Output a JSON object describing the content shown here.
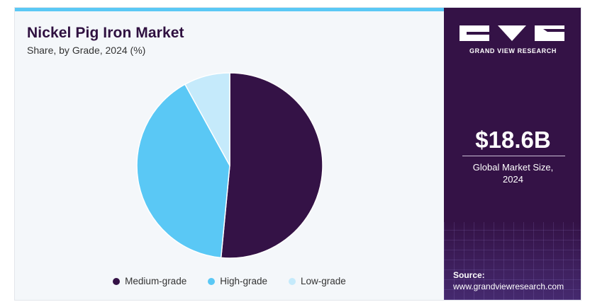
{
  "chart_data": {
    "type": "pie",
    "title": "Nickel Pig Iron Market",
    "subtitle": "Share, by Grade, 2024 (%)",
    "categories": [
      "Medium-grade",
      "High-grade",
      "Low-grade"
    ],
    "values": [
      51.5,
      40.5,
      8.0
    ],
    "colors": [
      "#341246",
      "#5ac8f5",
      "#c5eafb"
    ],
    "legend": "bottom"
  },
  "sidebar": {
    "brand": "GRAND VIEW RESEARCH",
    "market_value": "$18.6B",
    "caption_line1": "Global Market Size,",
    "caption_line2": "2024",
    "source_label": "Source:",
    "source_url": "www.grandviewresearch.com"
  }
}
